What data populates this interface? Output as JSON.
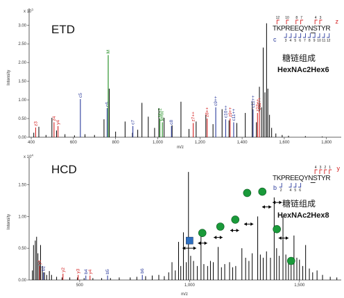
{
  "chart_data": [
    {
      "type": "bar",
      "panel": "ETD",
      "label": "ETD",
      "ylabel": "Intensity",
      "xlabel": "m/z",
      "y_exponent": "x 10^3",
      "y_exp_base": "x 10",
      "y_exp_power": "3",
      "xlim": [
        390,
        1870
      ],
      "ylim": [
        0,
        3.45
      ],
      "x_ticks": [
        400,
        600,
        800,
        1000,
        1200,
        1400,
        1600,
        1800
      ],
      "x_tick_labels": [
        "400",
        "600",
        "800",
        "1,000",
        "1,200",
        "1,400",
        "1,600",
        "1,800"
      ],
      "y_ticks": [
        0.0,
        0.5,
        1.0,
        1.5,
        2.0,
        2.5,
        3.0
      ],
      "y_tick_labels": [
        "0.00",
        "0.50",
        "1.00",
        "1.50",
        "2.00",
        "2.50",
        "3.00"
      ],
      "composition_chinese": "糖链组成",
      "composition": "HexNAc2Hex6",
      "sequence": "TKPREEQYNSTYR",
      "glycosite_index": 8,
      "top_ion_letter": "z",
      "top_ion_numbers": [
        "12",
        "10",
        "8",
        "7",
        "4",
        "3"
      ],
      "top_cleavage_after": [
        0,
        2,
        4,
        5,
        8,
        9
      ],
      "bottom_ion_letter": "c",
      "bottom_ion_numbers": [
        "3",
        "4",
        "5",
        "6",
        "7",
        "8",
        "9",
        "10",
        "11",
        "12"
      ],
      "bottom_cleavage_after": [
        2,
        3,
        4,
        5,
        6,
        7,
        8,
        9,
        10,
        11
      ],
      "series_colors": {
        "black": "#000000",
        "c": "#2a3a9c",
        "z": "#d42020",
        "M": "#1a8a1a"
      },
      "peaks_black": [
        [
          412,
          0.12
        ],
        [
          436,
          0.28
        ],
        [
          470,
          0.06
        ],
        [
          498,
          0.52
        ],
        [
          520,
          0.18
        ],
        [
          560,
          0.08
        ],
        [
          605,
          0.05
        ],
        [
          655,
          0.08
        ],
        [
          700,
          0.06
        ],
        [
          745,
          0.48
        ],
        [
          770,
          1.3
        ],
        [
          800,
          0.15
        ],
        [
          845,
          0.42
        ],
        [
          880,
          0.12
        ],
        [
          905,
          0.2
        ],
        [
          925,
          0.92
        ],
        [
          955,
          0.55
        ],
        [
          985,
          0.25
        ],
        [
          1005,
          0.78
        ],
        [
          1030,
          0.52
        ],
        [
          1068,
          0.32
        ],
        [
          1110,
          0.95
        ],
        [
          1148,
          0.22
        ],
        [
          1182,
          0.42
        ],
        [
          1228,
          0.6
        ],
        [
          1262,
          0.35
        ],
        [
          1305,
          0.75
        ],
        [
          1338,
          0.45
        ],
        [
          1375,
          0.38
        ],
        [
          1415,
          0.65
        ],
        [
          1448,
          0.95
        ],
        [
          1468,
          0.4
        ],
        [
          1482,
          1.35
        ],
        [
          1492,
          0.8
        ],
        [
          1500,
          2.4
        ],
        [
          1508,
          1.2
        ],
        [
          1516,
          3.05
        ],
        [
          1522,
          1.3
        ],
        [
          1530,
          0.6
        ],
        [
          1540,
          0.25
        ],
        [
          1560,
          0.1
        ],
        [
          1590,
          0.06
        ],
        [
          1620,
          0.04
        ],
        [
          1700,
          0.03
        ],
        [
          1780,
          0.02
        ]
      ],
      "peaks_labeled": [
        {
          "x": 421,
          "y": 0.26,
          "label": "z3",
          "color": "red"
        },
        {
          "x": 508,
          "y": 0.4,
          "label": "z4",
          "color": "red"
        },
        {
          "x": 527,
          "y": 0.3,
          "label": "y4",
          "color": "red"
        },
        {
          "x": 633,
          "y": 1.02,
          "label": "c5",
          "color": "blue"
        },
        {
          "x": 760,
          "y": 0.78,
          "label": "c6",
          "color": "blue"
        },
        {
          "x": 765,
          "y": 2.2,
          "label": "M",
          "color": "green"
        },
        {
          "x": 882,
          "y": 0.3,
          "label": "c7",
          "color": "blue"
        },
        {
          "x": 1010,
          "y": 0.5,
          "label": "M+2",
          "color": "green"
        },
        {
          "x": 1022,
          "y": 0.4,
          "label": "M+H",
          "color": "green"
        },
        {
          "x": 1065,
          "y": 0.3,
          "label": "c8",
          "color": "blue"
        },
        {
          "x": 1168,
          "y": 0.38,
          "label": "z7++",
          "color": "red"
        },
        {
          "x": 1234,
          "y": 0.5,
          "label": "z8++",
          "color": "red"
        },
        {
          "x": 1275,
          "y": 0.8,
          "label": "c9++",
          "color": "blue"
        },
        {
          "x": 1322,
          "y": 0.48,
          "label": "c10++",
          "color": "blue"
        },
        {
          "x": 1343,
          "y": 0.5,
          "label": "z9++",
          "color": "red"
        },
        {
          "x": 1360,
          "y": 0.4,
          "label": "c11++",
          "color": "blue"
        },
        {
          "x": 1452,
          "y": 0.75,
          "label": "c12++",
          "color": "blue"
        },
        {
          "x": 1473,
          "y": 0.65,
          "label": "z12++",
          "color": "red"
        },
        {
          "x": 1482,
          "y": 0.7,
          "label": "z11++",
          "color": "red"
        }
      ]
    },
    {
      "type": "bar",
      "panel": "HCD",
      "label": "HCD",
      "ylabel": "Intensity",
      "xlabel": "m/z",
      "y_exponent": "x 10^4",
      "y_exp_base": "x 10",
      "y_exp_power": "4",
      "xlim": [
        270,
        1690
      ],
      "ylim": [
        0,
        1.92
      ],
      "x_ticks": [
        500,
        1000,
        1500
      ],
      "x_tick_labels": [
        "500",
        "1,000",
        "1,500"
      ],
      "y_ticks": [
        0.0,
        0.5,
        1.0,
        1.5
      ],
      "y_tick_labels": [
        "0.00",
        "0.50",
        "1.00",
        "1.50"
      ],
      "composition_chinese": "糖链组成",
      "composition": "HexNAc2Hex8",
      "sequence": "TKPREEQYNSTYR",
      "glycosite_index": 8,
      "top_ion_letter": "y",
      "top_ion_numbers": [
        "4",
        "3",
        "2",
        "1"
      ],
      "top_cleavage_after": [
        8,
        9,
        10,
        11
      ],
      "bottom_ion_letter": "b",
      "bottom_ion_numbers": [
        "2",
        "4",
        "5",
        "6"
      ],
      "bottom_cleavage_after": [
        1,
        3,
        4,
        5
      ],
      "series_colors": {
        "black": "#000000",
        "b": "#2a3a9c",
        "y": "#d42020",
        "HexNAc": "#2e6fc0",
        "Hex": "#1a9a3a"
      },
      "peaks_black": [
        [
          285,
          0.15
        ],
        [
          290,
          0.55
        ],
        [
          298,
          0.62
        ],
        [
          304,
          0.68
        ],
        [
          310,
          0.42
        ],
        [
          316,
          0.3
        ],
        [
          322,
          0.55
        ],
        [
          330,
          0.22
        ],
        [
          340,
          0.12
        ],
        [
          350,
          0.08
        ],
        [
          362,
          0.14
        ],
        [
          372,
          0.08
        ],
        [
          395,
          0.05
        ],
        [
          420,
          0.04
        ],
        [
          455,
          0.04
        ],
        [
          490,
          0.04
        ],
        [
          520,
          0.03
        ],
        [
          560,
          0.03
        ],
        [
          600,
          0.03
        ],
        [
          640,
          0.03
        ],
        [
          680,
          0.04
        ],
        [
          730,
          0.04
        ],
        [
          760,
          0.05
        ],
        [
          800,
          0.06
        ],
        [
          830,
          0.07
        ],
        [
          860,
          0.08
        ],
        [
          885,
          0.06
        ],
        [
          905,
          0.12
        ],
        [
          920,
          0.28
        ],
        [
          935,
          0.15
        ],
        [
          950,
          0.6
        ],
        [
          960,
          0.22
        ],
        [
          972,
          0.75
        ],
        [
          985,
          0.28
        ],
        [
          995,
          1.7
        ],
        [
          1005,
          0.38
        ],
        [
          1018,
          0.3
        ],
        [
          1035,
          0.22
        ],
        [
          1052,
          0.7
        ],
        [
          1065,
          0.25
        ],
        [
          1082,
          0.22
        ],
        [
          1095,
          0.3
        ],
        [
          1108,
          0.28
        ],
        [
          1130,
          0.52
        ],
        [
          1145,
          0.2
        ],
        [
          1160,
          0.25
        ],
        [
          1182,
          0.28
        ],
        [
          1196,
          0.2
        ],
        [
          1210,
          0.22
        ],
        [
          1238,
          0.5
        ],
        [
          1255,
          0.35
        ],
        [
          1270,
          0.3
        ],
        [
          1285,
          0.42
        ],
        [
          1310,
          1.0
        ],
        [
          1322,
          0.4
        ],
        [
          1335,
          0.35
        ],
        [
          1350,
          0.45
        ],
        [
          1368,
          0.35
        ],
        [
          1385,
          1.3
        ],
        [
          1396,
          0.5
        ],
        [
          1408,
          0.38
        ],
        [
          1425,
          1.0
        ],
        [
          1438,
          0.4
        ],
        [
          1450,
          0.3
        ],
        [
          1462,
          0.25
        ],
        [
          1475,
          0.7
        ],
        [
          1488,
          0.35
        ],
        [
          1500,
          0.32
        ],
        [
          1515,
          0.22
        ],
        [
          1528,
          0.55
        ],
        [
          1545,
          0.18
        ],
        [
          1560,
          0.12
        ],
        [
          1580,
          0.15
        ],
        [
          1605,
          0.08
        ],
        [
          1640,
          0.05
        ],
        [
          1670,
          0.04
        ]
      ],
      "peaks_labeled": [
        {
          "x": 318,
          "y": 0.22,
          "label": "y1",
          "color": "red"
        },
        {
          "x": 335,
          "y": 0.12,
          "label": "b2",
          "color": "blue"
        },
        {
          "x": 424,
          "y": 0.1,
          "label": "y2",
          "color": "red"
        },
        {
          "x": 493,
          "y": 0.08,
          "label": "y3",
          "color": "red"
        },
        {
          "x": 528,
          "y": 0.07,
          "label": "b4",
          "color": "blue"
        },
        {
          "x": 547,
          "y": 0.07,
          "label": "y4",
          "color": "red"
        },
        {
          "x": 627,
          "y": 0.07,
          "label": "b5",
          "color": "blue"
        },
        {
          "x": 785,
          "y": 0.08,
          "label": "b6",
          "color": "blue"
        }
      ],
      "glycan_symbols": [
        {
          "shape": "square",
          "x": 1000,
          "y": 0.62
        },
        {
          "shape": "circle",
          "x": 1058,
          "y": 0.74
        },
        {
          "shape": "circle",
          "x": 1140,
          "y": 0.84
        },
        {
          "shape": "circle",
          "x": 1208,
          "y": 0.95
        },
        {
          "shape": "circle",
          "x": 1262,
          "y": 1.37
        },
        {
          "shape": "circle",
          "x": 1331,
          "y": 1.39
        },
        {
          "shape": "circle",
          "x": 1397,
          "y": 0.8
        },
        {
          "shape": "circle",
          "x": 1462,
          "y": 0.3
        }
      ],
      "arrows": [
        {
          "x1": 968,
          "x2": 1030,
          "y": 0.5
        },
        {
          "x1": 1038,
          "x2": 1080,
          "y": 0.58
        },
        {
          "x1": 1110,
          "x2": 1150,
          "y": 0.67
        },
        {
          "x1": 1185,
          "x2": 1225,
          "y": 0.78
        },
        {
          "x1": 1248,
          "x2": 1290,
          "y": 0.88
        },
        {
          "x1": 1330,
          "x2": 1372,
          "y": 1.15
        },
        {
          "x1": 1378,
          "x2": 1420,
          "y": 1.22
        },
        {
          "x1": 1405,
          "x2": 1450,
          "y": 0.66
        }
      ]
    }
  ]
}
